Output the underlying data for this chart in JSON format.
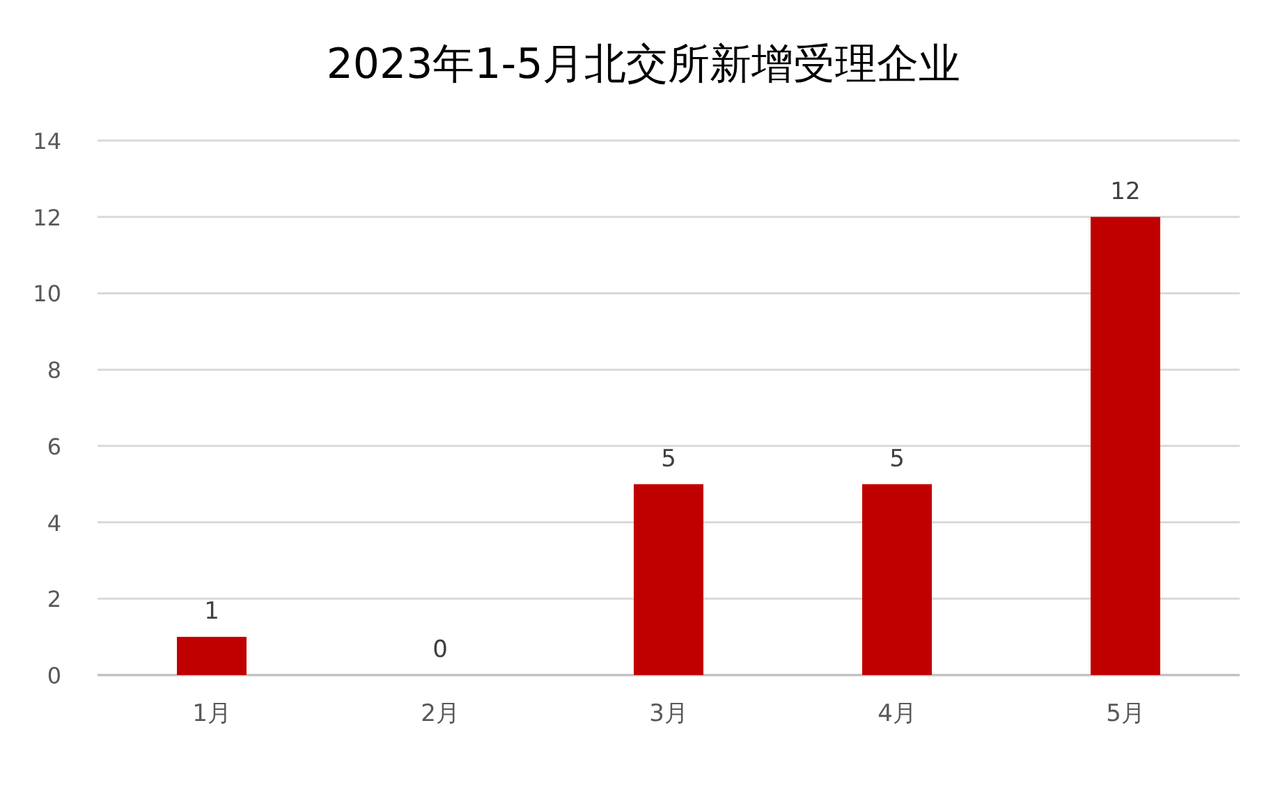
{
  "chart_data": {
    "type": "bar",
    "title": "2023年1-5月北交所新增受理企业",
    "categories": [
      "1月",
      "2月",
      "3月",
      "4月",
      "5月"
    ],
    "values": [
      1,
      0,
      5,
      5,
      12
    ],
    "color": "#c00000",
    "ylim": [
      0,
      14
    ],
    "yticks": [
      0,
      2,
      4,
      6,
      8,
      10,
      12,
      14
    ],
    "grid": "y",
    "data_labels": true
  }
}
